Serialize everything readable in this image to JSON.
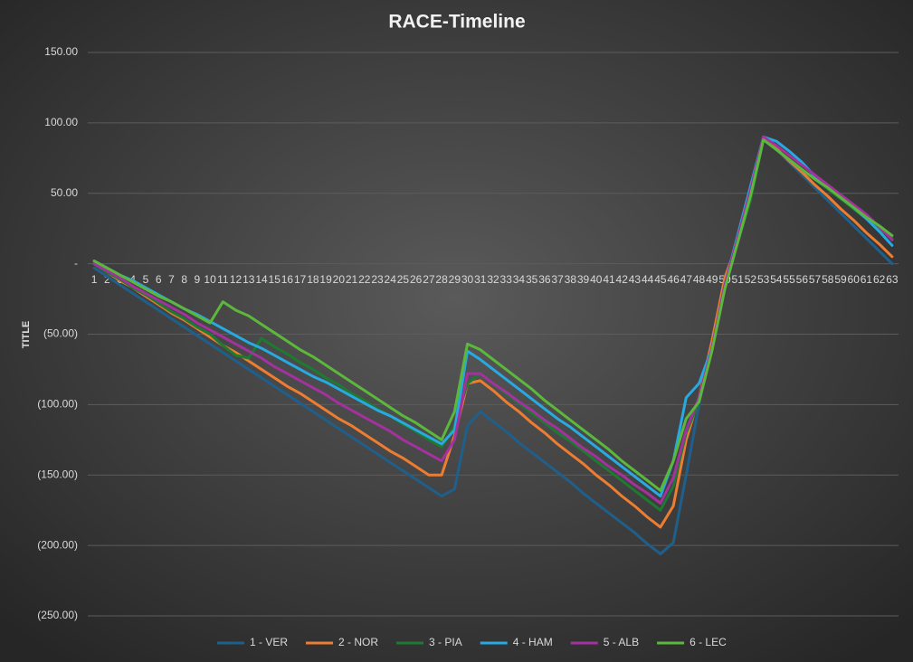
{
  "chart_data": {
    "type": "line",
    "title": "RACE-Timeline",
    "y_label": "TITLE",
    "categories": [
      "1",
      "2",
      "3",
      "4",
      "5",
      "6",
      "7",
      "8",
      "9",
      "10",
      "11",
      "12",
      "13",
      "14",
      "15",
      "16",
      "17",
      "18",
      "19",
      "20",
      "21",
      "22",
      "23",
      "24",
      "25",
      "26",
      "27",
      "28",
      "29",
      "30",
      "31",
      "32",
      "33",
      "34",
      "35",
      "36",
      "37",
      "38",
      "39",
      "40",
      "41",
      "42",
      "43",
      "44",
      "45",
      "46",
      "47",
      "48",
      "49",
      "50",
      "51",
      "52",
      "53",
      "54",
      "55",
      "56",
      "57",
      "58",
      "59",
      "60",
      "61",
      "62",
      "63"
    ],
    "ylim": [
      -250,
      150
    ],
    "yticks": [
      {
        "value": -250,
        "label": "(250.00)"
      },
      {
        "value": -200,
        "label": "(200.00)"
      },
      {
        "value": -150,
        "label": "(150.00)"
      },
      {
        "value": -100,
        "label": "(100.00)"
      },
      {
        "value": -50,
        "label": "(50.00)"
      },
      {
        "value": 0,
        "label": "-"
      },
      {
        "value": 50,
        "label": "50.00"
      },
      {
        "value": 100,
        "label": "100.00"
      },
      {
        "value": 150,
        "label": "150.00"
      }
    ],
    "grid": true,
    "legend": "bottom",
    "series": [
      {
        "name": "1 - VER",
        "color": "#1f5f8b",
        "values": [
          -3,
          -9,
          -15,
          -21,
          -27,
          -33,
          -39,
          -45,
          -51,
          -57,
          -63,
          -69,
          -75,
          -81,
          -87,
          -93,
          -99,
          -105,
          -111,
          -117,
          -123,
          -129,
          -135,
          -141,
          -147,
          -153,
          -159,
          -165,
          -160,
          -115,
          -105,
          -112,
          -119,
          -127,
          -134,
          -141,
          -148,
          -155,
          -163,
          -170,
          -177,
          -184,
          -191,
          -199,
          -206,
          -198,
          -150,
          -100,
          -55,
          -15,
          20,
          50,
          90,
          81,
          72,
          63,
          54,
          45,
          36,
          27,
          18,
          9,
          0
        ]
      },
      {
        "name": "2 - NOR",
        "color": "#ed7d31",
        "values": [
          0,
          -6,
          -12,
          -17,
          -23,
          -29,
          -35,
          -40,
          -46,
          -52,
          -58,
          -63,
          -69,
          -75,
          -81,
          -87,
          -92,
          -98,
          -104,
          -110,
          -115,
          -121,
          -127,
          -133,
          -138,
          -144,
          -150,
          -150,
          -122,
          -85,
          -83,
          -90,
          -98,
          -105,
          -113,
          -120,
          -128,
          -135,
          -142,
          -150,
          -157,
          -165,
          -172,
          -180,
          -187,
          -172,
          -125,
          -95,
          -55,
          -10,
          15,
          50,
          90,
          82,
          73,
          65,
          56,
          48,
          39,
          31,
          22,
          14,
          5
        ]
      },
      {
        "name": "3 - PIA",
        "color": "#1e7a30",
        "values": [
          0,
          -6,
          -11,
          -17,
          -22,
          -28,
          -34,
          -39,
          -45,
          -50,
          -58,
          -65,
          -67,
          -53,
          -59,
          -64,
          -70,
          -75,
          -81,
          -86,
          -92,
          -97,
          -103,
          -108,
          -114,
          -119,
          -125,
          -130,
          -115,
          -85,
          -78,
          -85,
          -92,
          -99,
          -106,
          -113,
          -120,
          -126,
          -133,
          -140,
          -147,
          -154,
          -161,
          -168,
          -175,
          -158,
          -120,
          -98,
          -60,
          -15,
          15,
          45,
          88,
          81,
          74,
          67,
          60,
          53,
          46,
          39,
          32,
          25,
          18
        ]
      },
      {
        "name": "4 - HAM",
        "color": "#27a9e1",
        "values": [
          2,
          -3,
          -8,
          -12,
          -17,
          -22,
          -27,
          -32,
          -36,
          -41,
          -46,
          -51,
          -56,
          -60,
          -65,
          -70,
          -75,
          -80,
          -84,
          -89,
          -94,
          -99,
          -104,
          -108,
          -113,
          -118,
          -123,
          -128,
          -118,
          -62,
          -68,
          -75,
          -82,
          -89,
          -96,
          -103,
          -110,
          -116,
          -123,
          -130,
          -137,
          -144,
          -151,
          -158,
          -165,
          -140,
          -95,
          -85,
          -60,
          -15,
          20,
          55,
          90,
          87,
          80,
          72,
          62,
          55,
          48,
          40,
          32,
          23,
          13
        ]
      },
      {
        "name": "5 - ALB",
        "color": "#a3329e",
        "values": [
          0,
          -5,
          -10,
          -16,
          -21,
          -26,
          -31,
          -36,
          -42,
          -47,
          -52,
          -57,
          -62,
          -67,
          -73,
          -78,
          -83,
          -88,
          -93,
          -99,
          -104,
          -109,
          -114,
          -119,
          -125,
          -130,
          -135,
          -140,
          -125,
          -78,
          -78,
          -85,
          -91,
          -98,
          -104,
          -111,
          -117,
          -124,
          -131,
          -137,
          -144,
          -150,
          -157,
          -163,
          -170,
          -152,
          -118,
          -95,
          -60,
          -15,
          18,
          52,
          90,
          84,
          77,
          70,
          63,
          56,
          49,
          42,
          35,
          26,
          17
        ]
      },
      {
        "name": "6 - LEC",
        "color": "#5cb83c",
        "values": [
          2,
          -3,
          -8,
          -13,
          -18,
          -23,
          -27,
          -32,
          -37,
          -42,
          -27,
          -33,
          -37,
          -43,
          -49,
          -55,
          -61,
          -66,
          -72,
          -78,
          -84,
          -90,
          -96,
          -102,
          -108,
          -113,
          -119,
          -125,
          -105,
          -57,
          -61,
          -68,
          -75,
          -82,
          -89,
          -97,
          -104,
          -111,
          -118,
          -125,
          -132,
          -140,
          -147,
          -154,
          -161,
          -140,
          -110,
          -98,
          -62,
          -18,
          15,
          48,
          88,
          81,
          74,
          67,
          60,
          54,
          47,
          40,
          33,
          27,
          20
        ]
      }
    ]
  }
}
